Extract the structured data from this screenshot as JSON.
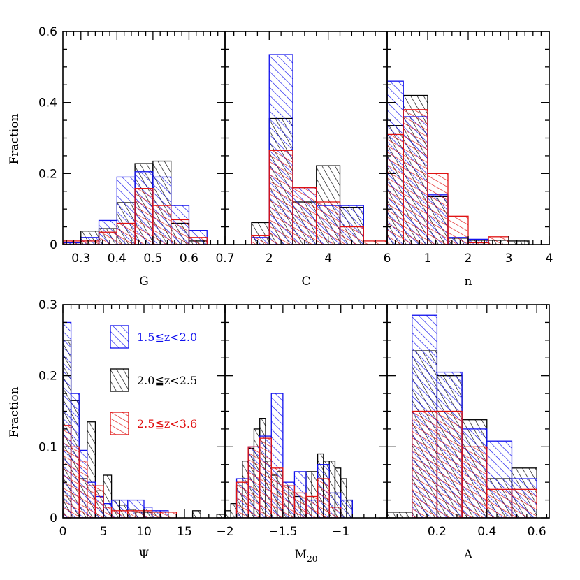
{
  "series_styles": [
    {
      "name": "1.5≦z<2.0",
      "color": "#1010ee",
      "cls": "bar-blue"
    },
    {
      "name": "2.0≦z<2.5",
      "color": "#000000",
      "cls": "bar-black"
    },
    {
      "name": "2.5≦z<3.6",
      "color": "#e01010",
      "cls": "bar-red"
    }
  ],
  "ylabels": {
    "top": "Fraction",
    "bottom": "Fraction"
  },
  "chart_data": [
    {
      "id": "G",
      "type": "bar",
      "xlabel": "G",
      "xlim": [
        0.25,
        0.7
      ],
      "ylim": [
        0,
        0.6
      ],
      "yticks": [
        {
          "v": 0,
          "t": "0"
        },
        {
          "v": 0.2,
          "t": "0.2"
        },
        {
          "v": 0.4,
          "t": "0.4"
        },
        {
          "v": 0.6,
          "t": "0.6"
        }
      ],
      "xticks": [
        {
          "v": 0.3,
          "t": "0.3"
        },
        {
          "v": 0.4,
          "t": "0.4"
        },
        {
          "v": 0.5,
          "t": "0.5"
        },
        {
          "v": 0.6,
          "t": "0.6"
        },
        {
          "v": 0.7,
          "t": "0.7"
        }
      ],
      "series": [
        {
          "name": "2.0≦z<2.5",
          "bins": [
            [
              0.25,
              0.3,
              0.005
            ],
            [
              0.3,
              0.35,
              0.038
            ],
            [
              0.35,
              0.4,
              0.045
            ],
            [
              0.4,
              0.45,
              0.118
            ],
            [
              0.45,
              0.5,
              0.228
            ],
            [
              0.5,
              0.55,
              0.235
            ],
            [
              0.55,
              0.6,
              0.06
            ],
            [
              0.6,
              0.65,
              0.01
            ]
          ]
        },
        {
          "name": "1.5≦z<2.0",
          "bins": [
            [
              0.25,
              0.3,
              0.005
            ],
            [
              0.3,
              0.35,
              0.02
            ],
            [
              0.35,
              0.4,
              0.068
            ],
            [
              0.4,
              0.45,
              0.19
            ],
            [
              0.45,
              0.5,
              0.205
            ],
            [
              0.5,
              0.55,
              0.19
            ],
            [
              0.55,
              0.6,
              0.11
            ],
            [
              0.6,
              0.65,
              0.04
            ]
          ]
        },
        {
          "name": "2.5≦z<3.6",
          "bins": [
            [
              0.25,
              0.3,
              0.01
            ],
            [
              0.3,
              0.35,
              0.01
            ],
            [
              0.35,
              0.4,
              0.035
            ],
            [
              0.4,
              0.45,
              0.06
            ],
            [
              0.45,
              0.5,
              0.158
            ],
            [
              0.5,
              0.55,
              0.11
            ],
            [
              0.55,
              0.6,
              0.07
            ],
            [
              0.6,
              0.65,
              0.02
            ]
          ]
        }
      ]
    },
    {
      "id": "C",
      "type": "bar",
      "xlabel": "C",
      "xlim": [
        0.5,
        6.0
      ],
      "ylim": [
        0,
        0.6
      ],
      "yticks": [],
      "xticks": [
        {
          "v": 2,
          "t": "2"
        },
        {
          "v": 4,
          "t": "4"
        },
        {
          "v": 6,
          "t": "6"
        }
      ],
      "series": [
        {
          "name": "2.0≦z<2.5",
          "bins": [
            [
              1.4,
              2.0,
              0.062
            ],
            [
              2.0,
              2.8,
              0.355
            ],
            [
              2.8,
              3.6,
              0.12
            ],
            [
              3.6,
              4.4,
              0.222
            ],
            [
              4.4,
              5.2,
              0.105
            ]
          ]
        },
        {
          "name": "1.5≦z<2.0",
          "bins": [
            [
              1.4,
              2.0,
              0.02
            ],
            [
              2.0,
              2.8,
              0.535
            ],
            [
              2.8,
              3.6,
              0.16
            ],
            [
              3.6,
              4.4,
              0.11
            ],
            [
              4.4,
              5.2,
              0.11
            ]
          ]
        },
        {
          "name": "2.5≦z<3.6",
          "bins": [
            [
              1.4,
              2.0,
              0.025
            ],
            [
              2.0,
              2.8,
              0.265
            ],
            [
              2.8,
              3.6,
              0.16
            ],
            [
              3.6,
              4.4,
              0.12
            ],
            [
              4.4,
              5.2,
              0.05
            ],
            [
              5.2,
              6.0,
              0.01
            ]
          ]
        }
      ]
    },
    {
      "id": "n",
      "type": "bar",
      "xlabel": "n",
      "xlim": [
        0.0,
        4.0
      ],
      "ylim": [
        0,
        0.6
      ],
      "yticks": [],
      "xticks": [
        {
          "v": 1,
          "t": "1"
        },
        {
          "v": 2,
          "t": "2"
        },
        {
          "v": 3,
          "t": "3"
        },
        {
          "v": 4,
          "t": "4"
        }
      ],
      "series": [
        {
          "name": "2.0≦z<2.5",
          "bins": [
            [
              0.0,
              0.4,
              0.335
            ],
            [
              0.4,
              1.0,
              0.42
            ],
            [
              1.0,
              1.5,
              0.135
            ],
            [
              1.5,
              2.0,
              0.018
            ],
            [
              2.0,
              2.5,
              0.012
            ],
            [
              2.5,
              3.0,
              0.012
            ],
            [
              3.0,
              3.5,
              0.01
            ]
          ]
        },
        {
          "name": "1.5≦z<2.0",
          "bins": [
            [
              0.0,
              0.4,
              0.46
            ],
            [
              0.4,
              1.0,
              0.36
            ],
            [
              1.0,
              1.5,
              0.14
            ],
            [
              1.5,
              2.0,
              0.02
            ],
            [
              2.0,
              2.5,
              0.015
            ]
          ]
        },
        {
          "name": "2.5≦z<3.6",
          "bins": [
            [
              0.0,
              0.4,
              0.31
            ],
            [
              0.4,
              1.0,
              0.38
            ],
            [
              1.0,
              1.5,
              0.2
            ],
            [
              1.5,
              2.0,
              0.08
            ],
            [
              2.0,
              2.5,
              0.005
            ],
            [
              2.5,
              3.0,
              0.022
            ]
          ]
        }
      ]
    },
    {
      "id": "Psi",
      "type": "bar",
      "xlabel": "Ψ",
      "xlim": [
        0,
        20
      ],
      "ylim": [
        0,
        0.3
      ],
      "yticks": [
        {
          "v": 0,
          "t": "0"
        },
        {
          "v": 0.1,
          "t": "0.1"
        },
        {
          "v": 0.2,
          "t": "0.2"
        },
        {
          "v": 0.3,
          "t": "0.3"
        }
      ],
      "xticks": [
        {
          "v": 0,
          "t": "0"
        },
        {
          "v": 5,
          "t": "5"
        },
        {
          "v": 10,
          "t": "10"
        },
        {
          "v": 15,
          "t": "15"
        }
      ],
      "series": [
        {
          "name": "2.0≦z<2.5",
          "bins": [
            [
              0,
              1,
              0.25
            ],
            [
              1,
              2,
              0.165
            ],
            [
              2,
              3,
              0.055
            ],
            [
              3,
              4,
              0.135
            ],
            [
              4,
              5,
              0.038
            ],
            [
              5,
              6,
              0.06
            ],
            [
              6,
              7,
              0.025
            ],
            [
              7,
              8,
              0.018
            ],
            [
              8,
              9,
              0.012
            ],
            [
              9,
              10,
              0.008
            ],
            [
              10,
              11,
              0.008
            ],
            [
              11,
              12,
              0.008
            ],
            [
              16,
              17,
              0.01
            ],
            [
              19,
              20,
              0.005
            ]
          ]
        },
        {
          "name": "1.5≦z<2.0",
          "bins": [
            [
              0,
              1,
              0.275
            ],
            [
              1,
              2,
              0.175
            ],
            [
              2,
              3,
              0.095
            ],
            [
              3,
              4,
              0.05
            ],
            [
              4,
              5,
              0.03
            ],
            [
              5,
              6,
              0.02
            ],
            [
              6,
              8,
              0.025
            ],
            [
              8,
              10,
              0.025
            ],
            [
              10,
              11,
              0.015
            ],
            [
              11,
              12,
              0.01
            ],
            [
              12,
              13,
              0.01
            ]
          ]
        },
        {
          "name": "2.5≦z<3.6",
          "bins": [
            [
              0,
              1,
              0.13
            ],
            [
              1,
              2,
              0.1
            ],
            [
              2,
              3,
              0.08
            ],
            [
              3,
              4,
              0.045
            ],
            [
              4,
              5,
              0.045
            ],
            [
              5,
              6,
              0.015
            ],
            [
              6,
              7,
              0.01
            ],
            [
              7,
              8,
              0.01
            ],
            [
              8,
              9,
              0.01
            ],
            [
              9,
              10,
              0.01
            ],
            [
              10,
              11,
              0.01
            ],
            [
              11,
              12,
              0.008
            ],
            [
              12,
              13,
              0.008
            ],
            [
              13,
              14,
              0.008
            ]
          ]
        }
      ]
    },
    {
      "id": "M20",
      "type": "bar",
      "xlabel": "M",
      "xlabel_sub": "20",
      "xlim": [
        -2.0,
        -0.6
      ],
      "ylim": [
        0,
        0.3
      ],
      "yticks": [],
      "xticks": [
        {
          "v": -2.0,
          "t": "−2"
        },
        {
          "v": -1.5,
          "t": "−1.5"
        },
        {
          "v": -1.0,
          "t": "−1"
        }
      ],
      "series": [
        {
          "name": "2.0≦z<2.5",
          "bins": [
            [
              -2.0,
              -1.95,
              0.01
            ],
            [
              -1.95,
              -1.9,
              0.02
            ],
            [
              -1.9,
              -1.85,
              0.045
            ],
            [
              -1.85,
              -1.8,
              0.08
            ],
            [
              -1.8,
              -1.75,
              0.098
            ],
            [
              -1.75,
              -1.7,
              0.125
            ],
            [
              -1.7,
              -1.65,
              0.14
            ],
            [
              -1.65,
              -1.6,
              0.08
            ],
            [
              -1.6,
              -1.55,
              0.06
            ],
            [
              -1.55,
              -1.5,
              0.065
            ],
            [
              -1.5,
              -1.45,
              0.045
            ],
            [
              -1.45,
              -1.4,
              0.035
            ],
            [
              -1.4,
              -1.35,
              0.03
            ],
            [
              -1.35,
              -1.3,
              0.028
            ],
            [
              -1.3,
              -1.25,
              0.065
            ],
            [
              -1.25,
              -1.2,
              0.065
            ],
            [
              -1.2,
              -1.15,
              0.09
            ],
            [
              -1.15,
              -1.1,
              0.08
            ],
            [
              -1.1,
              -1.05,
              0.08
            ],
            [
              -1.05,
              -1.0,
              0.07
            ],
            [
              -1.0,
              -0.95,
              0.055
            ],
            [
              -0.95,
              -0.9,
              0.025
            ]
          ]
        },
        {
          "name": "1.5≦z<2.0",
          "bins": [
            [
              -1.9,
              -1.8,
              0.055
            ],
            [
              -1.8,
              -1.7,
              0.1
            ],
            [
              -1.7,
              -1.6,
              0.115
            ],
            [
              -1.6,
              -1.5,
              0.175
            ],
            [
              -1.5,
              -1.4,
              0.05
            ],
            [
              -1.4,
              -1.3,
              0.065
            ],
            [
              -1.3,
              -1.2,
              0.025
            ],
            [
              -1.2,
              -1.1,
              0.075
            ],
            [
              -1.1,
              -1.0,
              0.035
            ],
            [
              -1.0,
              -0.9,
              0.025
            ]
          ]
        },
        {
          "name": "2.5≦z<3.6",
          "bins": [
            [
              -1.9,
              -1.8,
              0.05
            ],
            [
              -1.8,
              -1.7,
              0.1
            ],
            [
              -1.7,
              -1.6,
              0.112
            ],
            [
              -1.6,
              -1.5,
              0.07
            ],
            [
              -1.5,
              -1.4,
              0.045
            ],
            [
              -1.4,
              -1.3,
              0.035
            ],
            [
              -1.3,
              -1.2,
              0.03
            ],
            [
              -1.2,
              -1.1,
              0.055
            ],
            [
              -1.1,
              -1.0,
              0.015
            ]
          ]
        }
      ]
    },
    {
      "id": "A",
      "type": "bar",
      "xlabel": "A",
      "xlim": [
        0.0,
        0.65
      ],
      "ylim": [
        0,
        0.3
      ],
      "yticks": [],
      "xticks": [
        {
          "v": 0.2,
          "t": "0.2"
        },
        {
          "v": 0.4,
          "t": "0.4"
        },
        {
          "v": 0.6,
          "t": "0.6"
        }
      ],
      "series": [
        {
          "name": "2.0≦z<2.5",
          "bins": [
            [
              0.0,
              0.1,
              0.008
            ],
            [
              0.1,
              0.2,
              0.235
            ],
            [
              0.2,
              0.3,
              0.2
            ],
            [
              0.3,
              0.4,
              0.138
            ],
            [
              0.4,
              0.5,
              0.055
            ],
            [
              0.5,
              0.6,
              0.07
            ]
          ]
        },
        {
          "name": "1.5≦z<2.0",
          "bins": [
            [
              0.1,
              0.2,
              0.285
            ],
            [
              0.2,
              0.3,
              0.205
            ],
            [
              0.3,
              0.4,
              0.125
            ],
            [
              0.4,
              0.5,
              0.108
            ],
            [
              0.5,
              0.6,
              0.055
            ]
          ]
        },
        {
          "name": "2.5≦z<3.6",
          "bins": [
            [
              0.1,
              0.2,
              0.15
            ],
            [
              0.2,
              0.3,
              0.15
            ],
            [
              0.3,
              0.4,
              0.1
            ],
            [
              0.4,
              0.5,
              0.04
            ],
            [
              0.5,
              0.6,
              0.04
            ]
          ]
        }
      ]
    }
  ]
}
